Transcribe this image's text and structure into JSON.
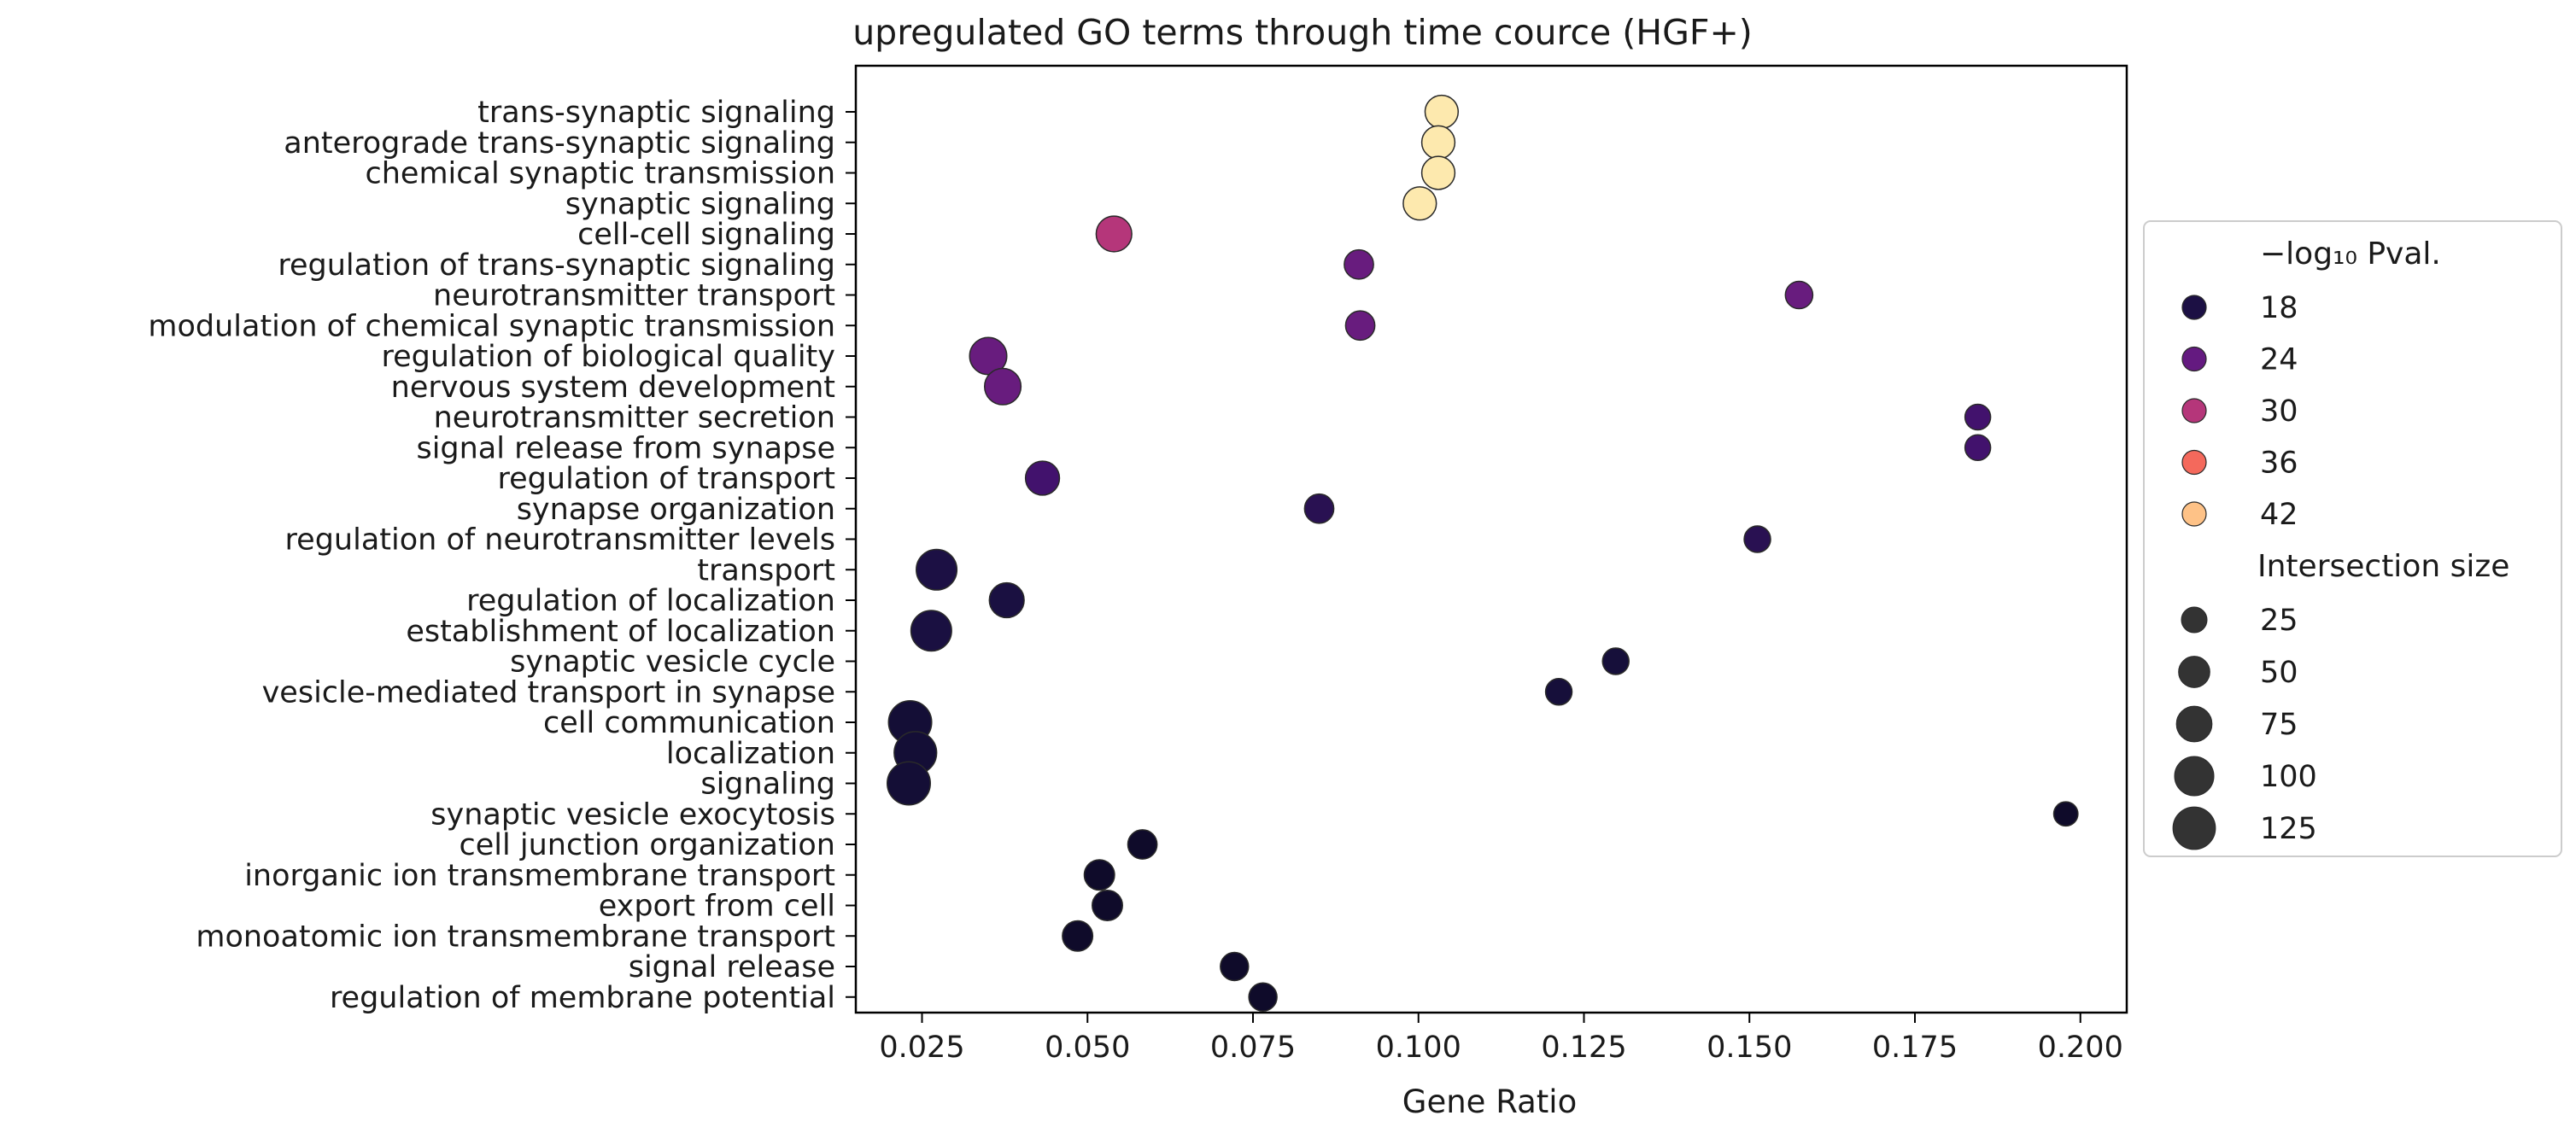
{
  "chart_data": {
    "type": "scatter",
    "title": "upregulated GO terms through time cource (HGF+)",
    "xlabel": "Gene Ratio",
    "ylabel": "",
    "xlim": [
      0.015,
      0.207
    ],
    "xticks": [
      "0.025",
      "0.050",
      "0.075",
      "0.100",
      "0.125",
      "0.150",
      "0.175",
      "0.200"
    ],
    "grid": false,
    "legend_placement": "right",
    "colormap": "magma",
    "color_legend": {
      "title": "−log₁₀ Pval.",
      "entries": [
        {
          "label": "18",
          "value": 18,
          "color": "#1c1044"
        },
        {
          "label": "24",
          "value": 24,
          "color": "#641a80"
        },
        {
          "label": "30",
          "value": 30,
          "color": "#b5367a"
        },
        {
          "label": "36",
          "value": 36,
          "color": "#f4695c"
        },
        {
          "label": "42",
          "value": 42,
          "color": "#fec287"
        }
      ]
    },
    "size_legend": {
      "title": "Intersection size",
      "entries": [
        {
          "label": "25",
          "value": 25
        },
        {
          "label": "50",
          "value": 50
        },
        {
          "label": "75",
          "value": 75
        },
        {
          "label": "100",
          "value": 100
        },
        {
          "label": "125",
          "value": 125
        }
      ]
    },
    "points": [
      {
        "term": "trans-synaptic signaling",
        "gene_ratio": 0.1035,
        "neg_log10_pval": 45,
        "intersection_size": 60
      },
      {
        "term": "anterograde trans-synaptic signaling",
        "gene_ratio": 0.103,
        "neg_log10_pval": 45,
        "intersection_size": 60
      },
      {
        "term": "chemical synaptic transmission",
        "gene_ratio": 0.103,
        "neg_log10_pval": 45,
        "intersection_size": 60
      },
      {
        "term": "synaptic signaling",
        "gene_ratio": 0.1002,
        "neg_log10_pval": 45,
        "intersection_size": 60
      },
      {
        "term": "cell-cell signaling",
        "gene_ratio": 0.054,
        "neg_log10_pval": 30,
        "intersection_size": 75
      },
      {
        "term": "regulation of trans-synaptic signaling",
        "gene_ratio": 0.091,
        "neg_log10_pval": 24,
        "intersection_size": 40
      },
      {
        "term": "neurotransmitter transport",
        "gene_ratio": 0.1575,
        "neg_log10_pval": 24,
        "intersection_size": 32
      },
      {
        "term": "modulation of chemical synaptic transmission",
        "gene_ratio": 0.0912,
        "neg_log10_pval": 24,
        "intersection_size": 40
      },
      {
        "term": "regulation of biological quality",
        "gene_ratio": 0.035,
        "neg_log10_pval": 24,
        "intersection_size": 85
      },
      {
        "term": "nervous system development",
        "gene_ratio": 0.0372,
        "neg_log10_pval": 24,
        "intersection_size": 80
      },
      {
        "term": "neurotransmitter secretion",
        "gene_ratio": 0.1845,
        "neg_log10_pval": 21,
        "intersection_size": 25
      },
      {
        "term": "signal release from synapse",
        "gene_ratio": 0.1845,
        "neg_log10_pval": 21,
        "intersection_size": 25
      },
      {
        "term": "regulation of transport",
        "gene_ratio": 0.0432,
        "neg_log10_pval": 21,
        "intersection_size": 65
      },
      {
        "term": "synapse organization",
        "gene_ratio": 0.085,
        "neg_log10_pval": 19,
        "intersection_size": 40
      },
      {
        "term": "regulation of neurotransmitter levels",
        "gene_ratio": 0.1512,
        "neg_log10_pval": 19,
        "intersection_size": 28
      },
      {
        "term": "transport",
        "gene_ratio": 0.0272,
        "neg_log10_pval": 18,
        "intersection_size": 110
      },
      {
        "term": "regulation of localization",
        "gene_ratio": 0.0378,
        "neg_log10_pval": 17,
        "intersection_size": 70
      },
      {
        "term": "establishment of localization",
        "gene_ratio": 0.0264,
        "neg_log10_pval": 17,
        "intersection_size": 110
      },
      {
        "term": "synaptic vesicle cycle",
        "gene_ratio": 0.1298,
        "neg_log10_pval": 15,
        "intersection_size": 28
      },
      {
        "term": "vesicle-mediated transport in synapse",
        "gene_ratio": 0.1212,
        "neg_log10_pval": 15,
        "intersection_size": 28
      },
      {
        "term": "cell communication",
        "gene_ratio": 0.0232,
        "neg_log10_pval": 14,
        "intersection_size": 130
      },
      {
        "term": "localization",
        "gene_ratio": 0.024,
        "neg_log10_pval": 14,
        "intersection_size": 125
      },
      {
        "term": "signaling",
        "gene_ratio": 0.023,
        "neg_log10_pval": 14,
        "intersection_size": 130
      },
      {
        "term": "synaptic vesicle exocytosis",
        "gene_ratio": 0.1978,
        "neg_log10_pval": 13,
        "intersection_size": 20
      },
      {
        "term": "cell junction organization",
        "gene_ratio": 0.0583,
        "neg_log10_pval": 13,
        "intersection_size": 40
      },
      {
        "term": "inorganic ion transmembrane transport",
        "gene_ratio": 0.0518,
        "neg_log10_pval": 13,
        "intersection_size": 45
      },
      {
        "term": "export from cell",
        "gene_ratio": 0.053,
        "neg_log10_pval": 13,
        "intersection_size": 45
      },
      {
        "term": "monoatomic ion transmembrane transport",
        "gene_ratio": 0.0485,
        "neg_log10_pval": 13,
        "intersection_size": 45
      },
      {
        "term": "signal release",
        "gene_ratio": 0.0722,
        "neg_log10_pval": 13,
        "intersection_size": 35
      },
      {
        "term": "regulation of membrane potential",
        "gene_ratio": 0.0765,
        "neg_log10_pval": 13,
        "intersection_size": 35
      }
    ]
  }
}
